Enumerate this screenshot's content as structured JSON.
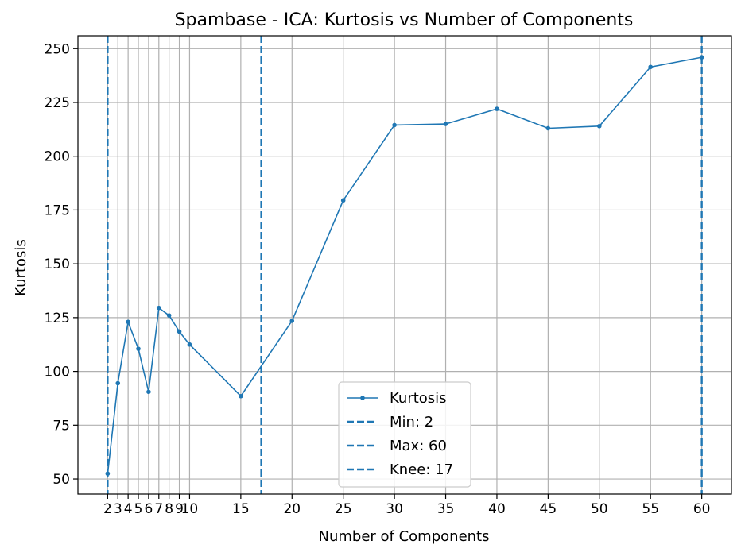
{
  "chart_data": {
    "type": "line",
    "title": "Spambase - ICA: Kurtosis vs Number of Components",
    "xlabel": "Number of Components",
    "ylabel": "Kurtosis",
    "xlim": [
      -0.9,
      62.9
    ],
    "ylim": [
      43,
      256
    ],
    "xticks": [
      2,
      3,
      4,
      5,
      6,
      7,
      8,
      9,
      10,
      15,
      20,
      25,
      30,
      35,
      40,
      45,
      50,
      55,
      60
    ],
    "yticks": [
      50,
      75,
      100,
      125,
      150,
      175,
      200,
      225,
      250
    ],
    "grid": true,
    "legend_position": "lower-center",
    "series": [
      {
        "name": "Kurtosis",
        "color": "#1f77b4",
        "x": [
          2,
          3,
          4,
          5,
          6,
          7,
          8,
          9,
          10,
          15,
          20,
          25,
          30,
          35,
          40,
          45,
          50,
          55,
          60
        ],
        "y": [
          52.5,
          94.5,
          123,
          110.5,
          90.5,
          129.5,
          126,
          118.5,
          112.5,
          88.5,
          123.5,
          179.5,
          214.5,
          215,
          222,
          213,
          214,
          241.5,
          246
        ]
      }
    ],
    "vlines": [
      {
        "label": "Min: 2",
        "x": 2,
        "color": "#1f77b4"
      },
      {
        "label": "Max: 60",
        "x": 60,
        "color": "#1f77b4"
      },
      {
        "label": "Knee: 17",
        "x": 17,
        "color": "#1f77b4"
      }
    ]
  }
}
